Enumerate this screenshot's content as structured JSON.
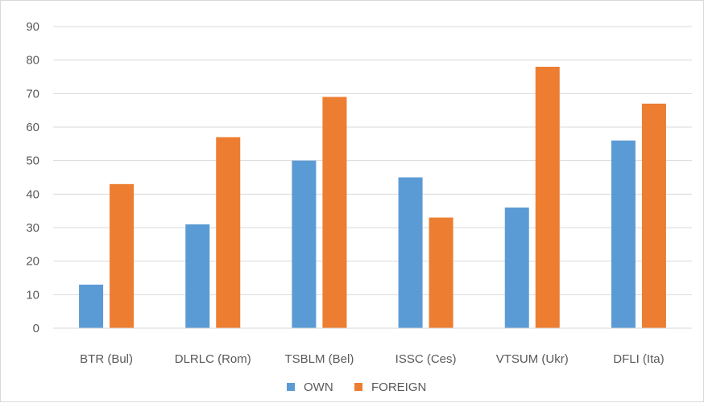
{
  "chart_data": {
    "type": "bar",
    "title": "",
    "xlabel": "",
    "ylabel": "",
    "categories": [
      "BTR (Bul)",
      "DLRLC (Rom)",
      "TSBLM (Bel)",
      "ISSC (Ces)",
      "VTSUM (Ukr)",
      "DFLI (Ita)"
    ],
    "series": [
      {
        "name": "OWN",
        "color": "#5b9bd5",
        "values": [
          13,
          31,
          50,
          45,
          36,
          56
        ]
      },
      {
        "name": "FOREIGN",
        "color": "#ed7d31",
        "values": [
          43,
          57,
          69,
          33,
          78,
          67
        ]
      }
    ],
    "ylim": [
      0,
      90
    ],
    "yticks": [
      0,
      10,
      20,
      30,
      40,
      50,
      60,
      70,
      80,
      90
    ],
    "grid": true,
    "legend_position": "bottom"
  }
}
